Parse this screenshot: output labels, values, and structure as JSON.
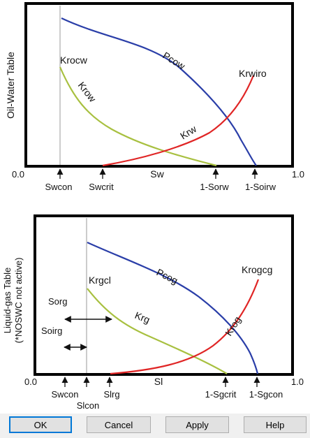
{
  "colors": {
    "blue": "#2a3ea8",
    "red": "#e02525",
    "green": "#a8c040",
    "frame": "#000000",
    "button_face": "#e1e1e1",
    "button_focus_border": "#0078d7"
  },
  "top_chart": {
    "y_title": "Oil-Water Table",
    "x_axis_left": "0.0",
    "x_axis_right": "1.0",
    "x_center_label": "Sw",
    "markers": [
      "Swcon",
      "Swcrit",
      "1-Sorw",
      "1-Soirw"
    ],
    "curves": {
      "pcow": "Pcow",
      "krow": "Krow",
      "krw": "Krw",
      "krocw": "Krocw",
      "krwiro": "Krwiro"
    }
  },
  "bottom_chart": {
    "y_title_line1": "Liquid-gas Table",
    "y_title_line2": "(*NOSWC not active)",
    "x_axis_left": "0.0",
    "x_axis_right": "1.0",
    "x_center_label": "Sl",
    "markers_above": [
      "Swcon",
      "Slrg",
      "1-Sgcrit",
      "1-Sgcon"
    ],
    "marker_below": "Slcon",
    "region_labels": {
      "sorg": "Sorg",
      "soirg": "Soirg"
    },
    "curves": {
      "pcog": "Pcog",
      "krg": "Krg",
      "krog": "Krog",
      "krgcl": "Krgcl",
      "krogcg": "Krogcg"
    }
  },
  "buttons": {
    "ok": "OK",
    "cancel": "Cancel",
    "apply": "Apply",
    "help": "Help"
  }
}
